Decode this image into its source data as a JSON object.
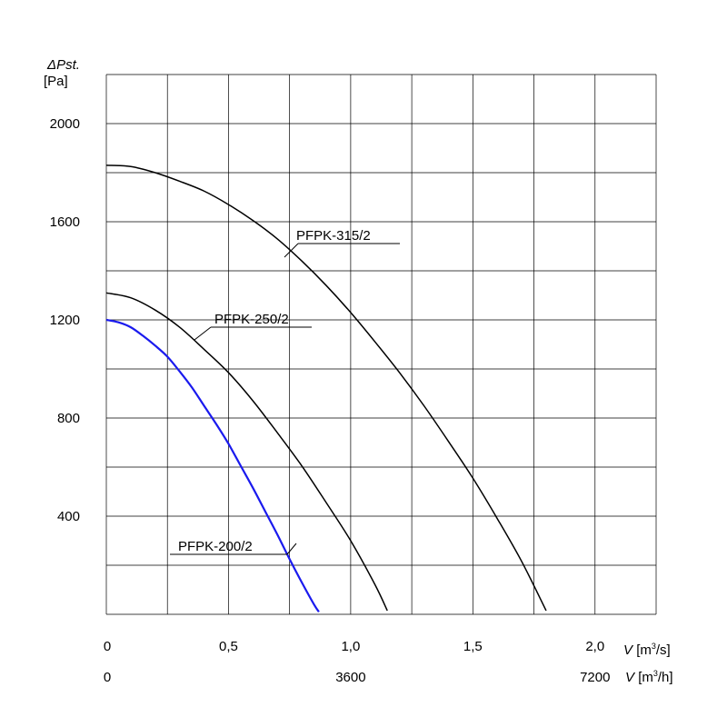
{
  "chart_data": {
    "type": "line",
    "ylabel": "ΔPst.",
    "yunit": "[Pa]",
    "xlabel_primary": "V",
    "xunit_primary": "[m³/s]",
    "xlabel_secondary": "V",
    "xunit_secondary": "[m³/h]",
    "xlim": [
      0,
      2.25
    ],
    "ylim": [
      0,
      2200
    ],
    "grid": true,
    "y_ticks": [
      {
        "value": 400,
        "label": "400"
      },
      {
        "value": 800,
        "label": "800"
      },
      {
        "value": 1200,
        "label": "1200"
      },
      {
        "value": 1600,
        "label": "1600"
      },
      {
        "value": 2000,
        "label": "2000"
      }
    ],
    "x_ticks_primary": [
      {
        "value": 0,
        "label": "0"
      },
      {
        "value": 0.5,
        "label": "0,5"
      },
      {
        "value": 1.0,
        "label": "1,0"
      },
      {
        "value": 1.5,
        "label": "1,5"
      },
      {
        "value": 2.0,
        "label": "2,0"
      }
    ],
    "x_ticks_secondary": [
      {
        "value": 0,
        "label": "0"
      },
      {
        "value": 1.0,
        "label": "3600"
      },
      {
        "value": 2.0,
        "label": "7200"
      }
    ],
    "series": [
      {
        "name": "PFPK-200/2",
        "color": "#1a1aee",
        "x": [
          0,
          0.05,
          0.1,
          0.15,
          0.2,
          0.25,
          0.3,
          0.35,
          0.4,
          0.45,
          0.5,
          0.55,
          0.6,
          0.65,
          0.7,
          0.75,
          0.8,
          0.85,
          0.87
        ],
        "y": [
          1200,
          1190,
          1170,
          1135,
          1095,
          1050,
          990,
          925,
          850,
          775,
          695,
          605,
          515,
          420,
          325,
          225,
          130,
          40,
          10
        ]
      },
      {
        "name": "PFPK-250/2",
        "color": "#000000",
        "x": [
          0,
          0.1,
          0.2,
          0.3,
          0.4,
          0.5,
          0.6,
          0.7,
          0.8,
          0.9,
          1.0,
          1.1,
          1.15
        ],
        "y": [
          1310,
          1290,
          1240,
          1170,
          1080,
          985,
          870,
          740,
          605,
          455,
          300,
          120,
          15
        ]
      },
      {
        "name": "PFPK-315/2",
        "color": "#000000",
        "x": [
          0,
          0.1,
          0.2,
          0.3,
          0.4,
          0.5,
          0.6,
          0.7,
          0.8,
          0.9,
          1.0,
          1.1,
          1.2,
          1.3,
          1.4,
          1.5,
          1.6,
          1.7,
          1.8
        ],
        "y": [
          1830,
          1825,
          1800,
          1765,
          1725,
          1670,
          1605,
          1530,
          1440,
          1340,
          1230,
          1110,
          985,
          850,
          705,
          555,
          390,
          215,
          15
        ]
      }
    ],
    "annotations": [
      {
        "series": "PFPK-315/2",
        "text": "PFPK-315/2"
      },
      {
        "series": "PFPK-250/2",
        "text": "PFPK-250/2"
      },
      {
        "series": "PFPK-200/2",
        "text": "PFPK-200/2"
      }
    ]
  }
}
